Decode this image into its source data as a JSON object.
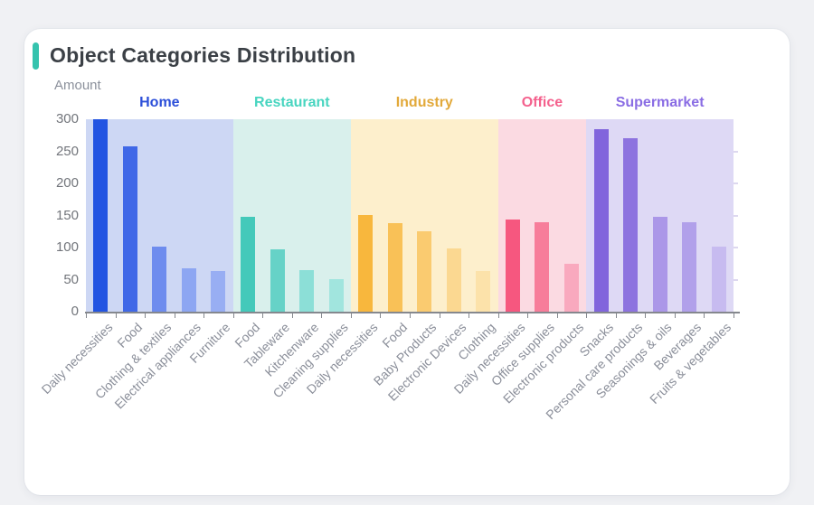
{
  "chart_data": {
    "type": "bar",
    "title": "Object Categories Distribution",
    "ylabel": "Amount",
    "xlabel": "",
    "ylim": [
      0,
      300
    ],
    "yticks": [
      300,
      250,
      200,
      150,
      100,
      50,
      0
    ],
    "grid": false,
    "legend_position": "group labels above shaded bands",
    "accent_color": "#35c3ae",
    "groups": [
      {
        "name": "Home",
        "label_color": "#2c4fd9",
        "band_color": "#cdd7f4",
        "bars": [
          {
            "category": "Daily necessities",
            "value": 300,
            "color": "#2254e2"
          },
          {
            "category": "Food",
            "value": 258,
            "color": "#4068e7"
          },
          {
            "category": "Clothing & textiles",
            "value": 102,
            "color": "#6e8cee"
          },
          {
            "category": "Electrical appliances",
            "value": 68,
            "color": "#8da6f2"
          },
          {
            "category": "Furniture",
            "value": 63,
            "color": "#98aef3"
          }
        ]
      },
      {
        "name": "Restaurant",
        "label_color": "#48d5c0",
        "band_color": "#d9f0ec",
        "bars": [
          {
            "category": "Food",
            "value": 148,
            "color": "#44c9ba"
          },
          {
            "category": "Tableware",
            "value": 97,
            "color": "#66d2c7"
          },
          {
            "category": "Kitchenware",
            "value": 65,
            "color": "#8cdfd7"
          },
          {
            "category": "Cleaning supplies",
            "value": 51,
            "color": "#a1e5de"
          }
        ]
      },
      {
        "name": "Industry",
        "label_color": "#e2a93a",
        "band_color": "#fdefcc",
        "bars": [
          {
            "category": "Daily necessities",
            "value": 150,
            "color": "#f8b73d"
          },
          {
            "category": "Food",
            "value": 138,
            "color": "#f9c157"
          },
          {
            "category": "Baby Products",
            "value": 126,
            "color": "#facb70"
          },
          {
            "category": "Electronic Devices",
            "value": 99,
            "color": "#fbd891"
          },
          {
            "category": "Clothing",
            "value": 63,
            "color": "#fce2aa"
          }
        ]
      },
      {
        "name": "Office",
        "label_color": "#f4618d",
        "band_color": "#fbdae2",
        "bars": [
          {
            "category": "Daily necessities",
            "value": 143,
            "color": "#f6577f"
          },
          {
            "category": "Office supplies",
            "value": 139,
            "color": "#f77d9a"
          },
          {
            "category": "Electronic products",
            "value": 75,
            "color": "#f9a9be"
          }
        ]
      },
      {
        "name": "Supermarket",
        "label_color": "#8a6de4",
        "band_color": "#ded9f5",
        "bars": [
          {
            "category": "Snacks",
            "value": 285,
            "color": "#8165dc"
          },
          {
            "category": "Personal care products",
            "value": 271,
            "color": "#8d73df"
          },
          {
            "category": "Seasonings & oils",
            "value": 148,
            "color": "#ab97e8"
          },
          {
            "category": "Beverages",
            "value": 140,
            "color": "#b1a0ea"
          },
          {
            "category": "Fruits & vegetables",
            "value": 102,
            "color": "#c7bbf0"
          }
        ]
      }
    ]
  }
}
